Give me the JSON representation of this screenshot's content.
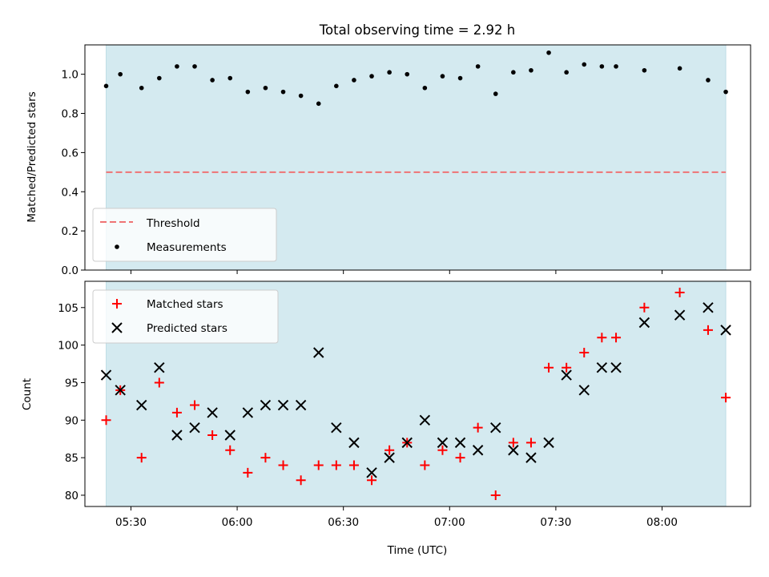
{
  "chart_data": [
    {
      "type": "scatter",
      "title": "Total observing time = 2.92 h",
      "ylabel": "Matched/Predicted stars",
      "xlim": [
        "05:17",
        "08:25"
      ],
      "ylim": [
        0,
        1.15
      ],
      "yticks": [
        "0.0",
        "0.2",
        "0.4",
        "0.6",
        "0.8",
        "1.0"
      ],
      "shaded_span": [
        "05:23",
        "08:18"
      ],
      "shade_color": "#d4eaf0",
      "threshold": {
        "name": "Threshold",
        "value": 0.5,
        "color": "#ef7374",
        "style": "dashed"
      },
      "legend": {
        "placement": "lower-left",
        "entries": [
          "Threshold",
          "Measurements"
        ]
      },
      "series": [
        {
          "name": "Measurements",
          "color": "#000000",
          "marker": "dot",
          "points": [
            {
              "x": "05:23",
              "y": 0.94
            },
            {
              "x": "05:27",
              "y": 1.0
            },
            {
              "x": "05:33",
              "y": 0.93
            },
            {
              "x": "05:38",
              "y": 0.98
            },
            {
              "x": "05:43",
              "y": 1.04
            },
            {
              "x": "05:48",
              "y": 1.04
            },
            {
              "x": "05:53",
              "y": 0.97
            },
            {
              "x": "05:58",
              "y": 0.98
            },
            {
              "x": "06:03",
              "y": 0.91
            },
            {
              "x": "06:08",
              "y": 0.93
            },
            {
              "x": "06:13",
              "y": 0.91
            },
            {
              "x": "06:18",
              "y": 0.89
            },
            {
              "x": "06:23",
              "y": 0.85
            },
            {
              "x": "06:28",
              "y": 0.94
            },
            {
              "x": "06:33",
              "y": 0.97
            },
            {
              "x": "06:38",
              "y": 0.99
            },
            {
              "x": "06:43",
              "y": 1.01
            },
            {
              "x": "06:48",
              "y": 1.0
            },
            {
              "x": "06:53",
              "y": 0.93
            },
            {
              "x": "06:58",
              "y": 0.99
            },
            {
              "x": "07:03",
              "y": 0.98
            },
            {
              "x": "07:08",
              "y": 1.04
            },
            {
              "x": "07:13",
              "y": 0.9
            },
            {
              "x": "07:18",
              "y": 1.01
            },
            {
              "x": "07:23",
              "y": 1.02
            },
            {
              "x": "07:28",
              "y": 1.11
            },
            {
              "x": "07:33",
              "y": 1.01
            },
            {
              "x": "07:38",
              "y": 1.05
            },
            {
              "x": "07:43",
              "y": 1.04
            },
            {
              "x": "07:47",
              "y": 1.04
            },
            {
              "x": "07:55",
              "y": 1.02
            },
            {
              "x": "08:05",
              "y": 1.03
            },
            {
              "x": "08:13",
              "y": 0.97
            },
            {
              "x": "08:18",
              "y": 0.91
            }
          ]
        }
      ]
    },
    {
      "type": "scatter",
      "xlabel": "Time (UTC)",
      "ylabel": "Count",
      "xlim": [
        "05:17",
        "08:25"
      ],
      "ylim": [
        78.5,
        108.5
      ],
      "xticks": [
        "05:30",
        "06:00",
        "06:30",
        "07:00",
        "07:30",
        "08:00"
      ],
      "yticks": [
        "80",
        "85",
        "90",
        "95",
        "100",
        "105"
      ],
      "shaded_span": [
        "05:23",
        "08:18"
      ],
      "shade_color": "#d4eaf0",
      "legend": {
        "placement": "top-left",
        "entries": [
          "Matched stars",
          "Predicted stars"
        ]
      },
      "series": [
        {
          "name": "Matched stars",
          "color": "#ff0000",
          "marker": "plus",
          "points": [
            {
              "x": "05:23",
              "y": 90
            },
            {
              "x": "05:27",
              "y": 94
            },
            {
              "x": "05:33",
              "y": 85
            },
            {
              "x": "05:38",
              "y": 95
            },
            {
              "x": "05:43",
              "y": 91
            },
            {
              "x": "05:48",
              "y": 92
            },
            {
              "x": "05:53",
              "y": 88
            },
            {
              "x": "05:58",
              "y": 86
            },
            {
              "x": "06:03",
              "y": 83
            },
            {
              "x": "06:08",
              "y": 85
            },
            {
              "x": "06:13",
              "y": 84
            },
            {
              "x": "06:18",
              "y": 82
            },
            {
              "x": "06:23",
              "y": 84
            },
            {
              "x": "06:28",
              "y": 84
            },
            {
              "x": "06:33",
              "y": 84
            },
            {
              "x": "06:38",
              "y": 82
            },
            {
              "x": "06:43",
              "y": 86
            },
            {
              "x": "06:48",
              "y": 87
            },
            {
              "x": "06:53",
              "y": 84
            },
            {
              "x": "06:58",
              "y": 86
            },
            {
              "x": "07:03",
              "y": 85
            },
            {
              "x": "07:08",
              "y": 89
            },
            {
              "x": "07:13",
              "y": 80
            },
            {
              "x": "07:18",
              "y": 87
            },
            {
              "x": "07:23",
              "y": 87
            },
            {
              "x": "07:28",
              "y": 97
            },
            {
              "x": "07:33",
              "y": 97
            },
            {
              "x": "07:38",
              "y": 99
            },
            {
              "x": "07:43",
              "y": 101
            },
            {
              "x": "07:47",
              "y": 101
            },
            {
              "x": "07:55",
              "y": 105
            },
            {
              "x": "08:05",
              "y": 107
            },
            {
              "x": "08:13",
              "y": 102
            },
            {
              "x": "08:18",
              "y": 93
            }
          ]
        },
        {
          "name": "Predicted stars",
          "color": "#000000",
          "marker": "x",
          "points": [
            {
              "x": "05:23",
              "y": 96
            },
            {
              "x": "05:27",
              "y": 94
            },
            {
              "x": "05:33",
              "y": 92
            },
            {
              "x": "05:38",
              "y": 97
            },
            {
              "x": "05:43",
              "y": 88
            },
            {
              "x": "05:48",
              "y": 89
            },
            {
              "x": "05:53",
              "y": 91
            },
            {
              "x": "05:58",
              "y": 88
            },
            {
              "x": "06:03",
              "y": 91
            },
            {
              "x": "06:08",
              "y": 92
            },
            {
              "x": "06:13",
              "y": 92
            },
            {
              "x": "06:18",
              "y": 92
            },
            {
              "x": "06:23",
              "y": 99
            },
            {
              "x": "06:28",
              "y": 89
            },
            {
              "x": "06:33",
              "y": 87
            },
            {
              "x": "06:38",
              "y": 83
            },
            {
              "x": "06:43",
              "y": 85
            },
            {
              "x": "06:48",
              "y": 87
            },
            {
              "x": "06:53",
              "y": 90
            },
            {
              "x": "06:58",
              "y": 87
            },
            {
              "x": "07:03",
              "y": 87
            },
            {
              "x": "07:08",
              "y": 86
            },
            {
              "x": "07:13",
              "y": 89
            },
            {
              "x": "07:18",
              "y": 86
            },
            {
              "x": "07:23",
              "y": 85
            },
            {
              "x": "07:28",
              "y": 87
            },
            {
              "x": "07:33",
              "y": 96
            },
            {
              "x": "07:38",
              "y": 94
            },
            {
              "x": "07:43",
              "y": 97
            },
            {
              "x": "07:47",
              "y": 97
            },
            {
              "x": "07:55",
              "y": 103
            },
            {
              "x": "08:05",
              "y": 104
            },
            {
              "x": "08:13",
              "y": 105
            },
            {
              "x": "08:18",
              "y": 102
            }
          ]
        }
      ]
    }
  ]
}
